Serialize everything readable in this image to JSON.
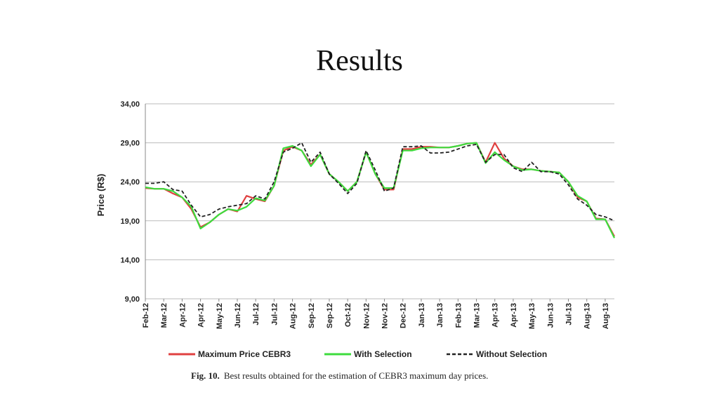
{
  "title": "Results",
  "chart_data": {
    "type": "line",
    "y_label": "Price (R$)",
    "categories": [
      "Feb-12",
      null,
      "Mar-12",
      null,
      "Apr-12",
      null,
      "Apr-12",
      null,
      "May-12",
      null,
      "Jun-12",
      null,
      "Jul-12",
      null,
      "Jul-12",
      null,
      "Aug-12",
      null,
      "Sep-12",
      null,
      "Sep-12",
      null,
      "Oct-12",
      null,
      "Nov-12",
      null,
      "Nov-12",
      null,
      "Dec-12",
      null,
      "Jan-13",
      null,
      "Jan-13",
      null,
      "Feb-13",
      null,
      "Mar-13",
      null,
      "Apr-13",
      null,
      "Apr-13",
      null,
      "May-13",
      null,
      "Jun-13",
      null,
      "Jul-13",
      null,
      "Aug-13",
      null,
      "Aug-13",
      null
    ],
    "series": [
      {
        "name": "Maximum Price CEBR3",
        "color": "#e04040",
        "dashed": false,
        "values": [
          23.2,
          23.1,
          23.1,
          22.5,
          22.0,
          20.5,
          18.2,
          18.8,
          19.8,
          20.5,
          20.2,
          22.2,
          21.8,
          21.5,
          23.5,
          28.0,
          28.5,
          28.0,
          26.2,
          27.5,
          25.0,
          24.0,
          22.8,
          24.0,
          27.8,
          25.0,
          23.0,
          23.0,
          28.2,
          28.2,
          28.5,
          28.5,
          28.4,
          28.4,
          28.6,
          28.9,
          29.0,
          26.5,
          29.0,
          27.0,
          26.0,
          25.6,
          25.6,
          25.4,
          25.3,
          25.2,
          24.0,
          22.0,
          21.5,
          19.3,
          19.2,
          17.0
        ]
      },
      {
        "name": "With Selection",
        "color": "#3ddc3d",
        "dashed": false,
        "values": [
          23.3,
          23.1,
          23.1,
          22.8,
          22.0,
          20.8,
          18.0,
          18.8,
          19.8,
          20.5,
          20.3,
          20.8,
          21.9,
          21.6,
          23.5,
          28.3,
          28.6,
          28.0,
          26.0,
          27.5,
          25.0,
          24.0,
          22.8,
          24.0,
          27.8,
          25.0,
          23.2,
          23.2,
          28.0,
          28.0,
          28.3,
          28.4,
          28.4,
          28.4,
          28.6,
          28.9,
          29.0,
          26.4,
          27.8,
          26.8,
          26.0,
          25.5,
          25.6,
          25.4,
          25.3,
          25.2,
          24.0,
          22.2,
          21.5,
          19.2,
          19.2,
          16.8
        ]
      },
      {
        "name": "Without Selection",
        "color": "#222222",
        "dashed": true,
        "values": [
          23.8,
          23.8,
          24.0,
          23.0,
          22.8,
          21.0,
          19.5,
          19.8,
          20.5,
          20.8,
          21.0,
          21.2,
          22.2,
          21.8,
          24.0,
          27.8,
          28.3,
          29.0,
          26.5,
          27.8,
          25.0,
          23.8,
          22.5,
          23.8,
          28.0,
          25.5,
          22.8,
          23.2,
          28.5,
          28.5,
          28.6,
          27.7,
          27.7,
          27.8,
          28.2,
          28.6,
          28.8,
          26.5,
          27.5,
          27.5,
          25.8,
          25.3,
          26.5,
          25.3,
          25.3,
          25.0,
          23.6,
          21.8,
          21.0,
          19.8,
          19.5,
          19.0
        ]
      }
    ],
    "ylim": [
      9,
      34
    ],
    "yticks": [
      {
        "value": 9,
        "label": "9,00"
      },
      {
        "value": 14,
        "label": "14,00"
      },
      {
        "value": 19,
        "label": "19,00"
      },
      {
        "value": 24,
        "label": "24,00"
      },
      {
        "value": 29,
        "label": "29,00"
      },
      {
        "value": 34,
        "label": "34,00"
      }
    ],
    "grid": true,
    "legend": "bottom"
  },
  "caption": {
    "label": "Fig. 10.",
    "text": "Best results obtained for the estimation of CEBR3 maximum day prices."
  }
}
